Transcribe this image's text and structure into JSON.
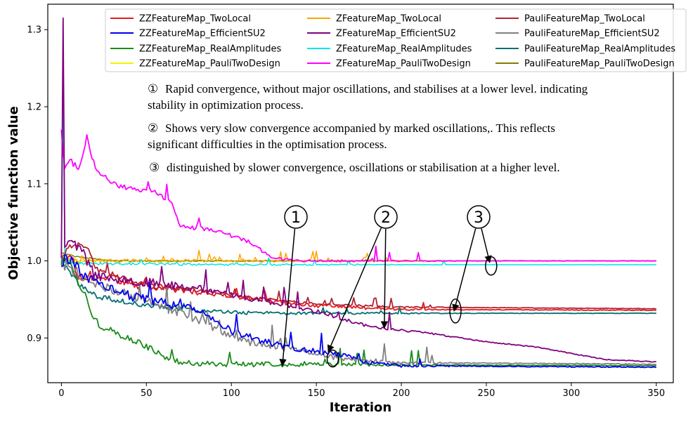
{
  "chart_data": {
    "type": "line",
    "title": "",
    "xlabel": "Iteration",
    "ylabel": "Objective function value",
    "xlim": [
      -8,
      360
    ],
    "ylim": [
      0.842,
      1.333
    ],
    "xticks": [
      0,
      50,
      100,
      150,
      200,
      250,
      300,
      350
    ],
    "yticks": [
      0.9,
      1.0,
      1.1,
      1.2,
      1.3
    ],
    "ytick_labels": [
      "0.9",
      "1.0",
      "1.1",
      "1.2",
      "1.3"
    ],
    "legend_position": "top-right",
    "series": [
      {
        "name": "ZZFeatureMap_TwoLocal",
        "color": "#e41a1c",
        "linewidth": 1.8,
        "noise": 0.006,
        "spikes": 0.008,
        "length": 350,
        "keypoints": [
          [
            0,
            1.0
          ],
          [
            5,
            1.01
          ],
          [
            10,
            0.98
          ],
          [
            20,
            0.975
          ],
          [
            30,
            0.98
          ],
          [
            40,
            0.97
          ],
          [
            60,
            0.965
          ],
          [
            80,
            0.96
          ],
          [
            100,
            0.955
          ],
          [
            120,
            0.948
          ],
          [
            150,
            0.942
          ],
          [
            180,
            0.939
          ],
          [
            200,
            0.937
          ],
          [
            350,
            0.936
          ]
        ]
      },
      {
        "name": "ZFeatureMap_TwoLocal",
        "color": "#ffa500",
        "linewidth": 1.5,
        "noise": 0.003,
        "spikes": 0.006,
        "length": 205,
        "keypoints": [
          [
            0,
            1.0
          ],
          [
            10,
            1.0
          ],
          [
            30,
            1.0
          ],
          [
            60,
            1.0
          ],
          [
            100,
            1.0
          ],
          [
            205,
            1.0
          ]
        ]
      },
      {
        "name": "PauliFeatureMap_TwoLocal",
        "color": "#b22234",
        "linewidth": 1.8,
        "noise": 0.004,
        "spikes": 0.006,
        "length": 350,
        "keypoints": [
          [
            0,
            1.0
          ],
          [
            5,
            1.02
          ],
          [
            15,
            1.02
          ],
          [
            20,
            0.99
          ],
          [
            40,
            0.975
          ],
          [
            60,
            0.965
          ],
          [
            80,
            0.962
          ],
          [
            100,
            0.955
          ],
          [
            130,
            0.948
          ],
          [
            160,
            0.943
          ],
          [
            200,
            0.94
          ],
          [
            350,
            0.938
          ]
        ]
      },
      {
        "name": "ZZFeatureMap_EfficientSU2",
        "color": "#0000ee",
        "linewidth": 1.8,
        "noise": 0.008,
        "spikes": 0.012,
        "length": 350,
        "keypoints": [
          [
            0,
            1.0
          ],
          [
            5,
            1.0
          ],
          [
            10,
            0.99
          ],
          [
            20,
            0.97
          ],
          [
            40,
            0.955
          ],
          [
            60,
            0.945
          ],
          [
            80,
            0.935
          ],
          [
            100,
            0.91
          ],
          [
            120,
            0.895
          ],
          [
            140,
            0.885
          ],
          [
            160,
            0.88
          ],
          [
            170,
            0.875
          ],
          [
            180,
            0.868
          ],
          [
            200,
            0.864
          ],
          [
            350,
            0.862
          ]
        ]
      },
      {
        "name": "ZFeatureMap_EfficientSU2",
        "color": "#800080",
        "linewidth": 1.8,
        "noise": 0.007,
        "spikes": 0.012,
        "length": 350,
        "keypoints": [
          [
            0,
            1.01
          ],
          [
            1,
            1.315
          ],
          [
            2,
            1.02
          ],
          [
            10,
            1.02
          ],
          [
            20,
            0.98
          ],
          [
            40,
            0.975
          ],
          [
            60,
            0.97
          ],
          [
            80,
            0.965
          ],
          [
            100,
            0.955
          ],
          [
            120,
            0.948
          ],
          [
            150,
            0.935
          ],
          [
            180,
            0.915
          ],
          [
            200,
            0.91
          ],
          [
            220,
            0.905
          ],
          [
            250,
            0.895
          ],
          [
            280,
            0.888
          ],
          [
            300,
            0.88
          ],
          [
            320,
            0.872
          ],
          [
            350,
            0.869
          ]
        ]
      },
      {
        "name": "PauliFeatureMap_EfficientSU2",
        "color": "#808080",
        "linewidth": 1.8,
        "noise": 0.008,
        "spikes": 0.012,
        "length": 350,
        "keypoints": [
          [
            0,
            1.0
          ],
          [
            10,
            0.98
          ],
          [
            20,
            0.97
          ],
          [
            40,
            0.955
          ],
          [
            60,
            0.94
          ],
          [
            80,
            0.925
          ],
          [
            100,
            0.9
          ],
          [
            120,
            0.89
          ],
          [
            140,
            0.885
          ],
          [
            160,
            0.875
          ],
          [
            180,
            0.87
          ],
          [
            200,
            0.868
          ],
          [
            350,
            0.866
          ]
        ]
      },
      {
        "name": "ZZFeatureMap_RealAmplitudes",
        "color": "#1a8c1a",
        "linewidth": 1.8,
        "noise": 0.006,
        "spikes": 0.01,
        "length": 350,
        "keypoints": [
          [
            0,
            1.0
          ],
          [
            5,
            1.0
          ],
          [
            10,
            0.97
          ],
          [
            15,
            0.95
          ],
          [
            20,
            0.92
          ],
          [
            30,
            0.91
          ],
          [
            40,
            0.9
          ],
          [
            50,
            0.89
          ],
          [
            60,
            0.875
          ],
          [
            70,
            0.868
          ],
          [
            80,
            0.866
          ],
          [
            350,
            0.864
          ]
        ]
      },
      {
        "name": "ZFeatureMap_RealAmplitudes",
        "color": "#00e5e5",
        "linewidth": 1.5,
        "noise": 0.002,
        "spikes": 0.004,
        "length": 350,
        "keypoints": [
          [
            0,
            1.0
          ],
          [
            1,
            1.24
          ],
          [
            2,
            1.0
          ],
          [
            10,
            0.997
          ],
          [
            50,
            0.996
          ],
          [
            100,
            0.995
          ],
          [
            350,
            0.995
          ]
        ]
      },
      {
        "name": "PauliFeatureMap_RealAmplitudes",
        "color": "#007070",
        "linewidth": 1.8,
        "noise": 0.004,
        "spikes": 0.006,
        "length": 350,
        "keypoints": [
          [
            0,
            1.0
          ],
          [
            10,
            0.97
          ],
          [
            20,
            0.955
          ],
          [
            40,
            0.945
          ],
          [
            60,
            0.94
          ],
          [
            80,
            0.935
          ],
          [
            100,
            0.933
          ],
          [
            150,
            0.932
          ],
          [
            350,
            0.932
          ]
        ]
      },
      {
        "name": "ZZFeatureMap_PauliTwoDesign",
        "color": "#f2f200",
        "linewidth": 1.5,
        "noise": 0.001,
        "spikes": 0.0,
        "length": 350,
        "keypoints": [
          [
            0,
            1.0
          ],
          [
            350,
            1.0
          ]
        ]
      },
      {
        "name": "ZFeatureMap_PauliTwoDesign",
        "color": "#ff00ff",
        "linewidth": 1.8,
        "noise": 0.004,
        "spikes": 0.01,
        "length": 350,
        "keypoints": [
          [
            0,
            1.17
          ],
          [
            2,
            1.12
          ],
          [
            5,
            1.13
          ],
          [
            10,
            1.12
          ],
          [
            15,
            1.16
          ],
          [
            20,
            1.12
          ],
          [
            30,
            1.1
          ],
          [
            40,
            1.095
          ],
          [
            55,
            1.09
          ],
          [
            65,
            1.075
          ],
          [
            70,
            1.045
          ],
          [
            90,
            1.04
          ],
          [
            110,
            1.025
          ],
          [
            125,
            1.003
          ],
          [
            140,
            1.0
          ],
          [
            350,
            1.0
          ]
        ]
      },
      {
        "name": "PauliFeatureMap_PauliTwoDesign",
        "color": "#808000",
        "linewidth": 1.5,
        "noise": 0.001,
        "spikes": 0.0,
        "length": 350,
        "keypoints": [
          [
            0,
            1.01
          ],
          [
            10,
            1.005
          ],
          [
            30,
            1.0
          ],
          [
            350,
            1.0
          ]
        ]
      }
    ],
    "annotations": [
      {
        "marker": "①",
        "text": "Rapid convergence, without major oscillations, and stabilises at a lower level. indicating"
      },
      {
        "marker": "",
        "text": "stability in optimization process."
      },
      {
        "marker": "②",
        "text": "Shows very slow convergence accompanied by marked oscillations,. This reflects"
      },
      {
        "marker": "",
        "text": "significant difficulties in the optimisation process."
      },
      {
        "marker": "③",
        "text": "distinguished by slower convergence, oscillations or stabilisation at a higher level."
      }
    ],
    "callouts": [
      {
        "label": "1",
        "targets": [
          [
            130,
            0.864
          ]
        ]
      },
      {
        "label": "2",
        "targets": [
          [
            157,
            0.882
          ],
          [
            190,
            0.913
          ]
        ]
      },
      {
        "label": "3",
        "targets": [
          [
            231,
            0.935
          ],
          [
            252,
            0.998
          ]
        ]
      }
    ]
  }
}
